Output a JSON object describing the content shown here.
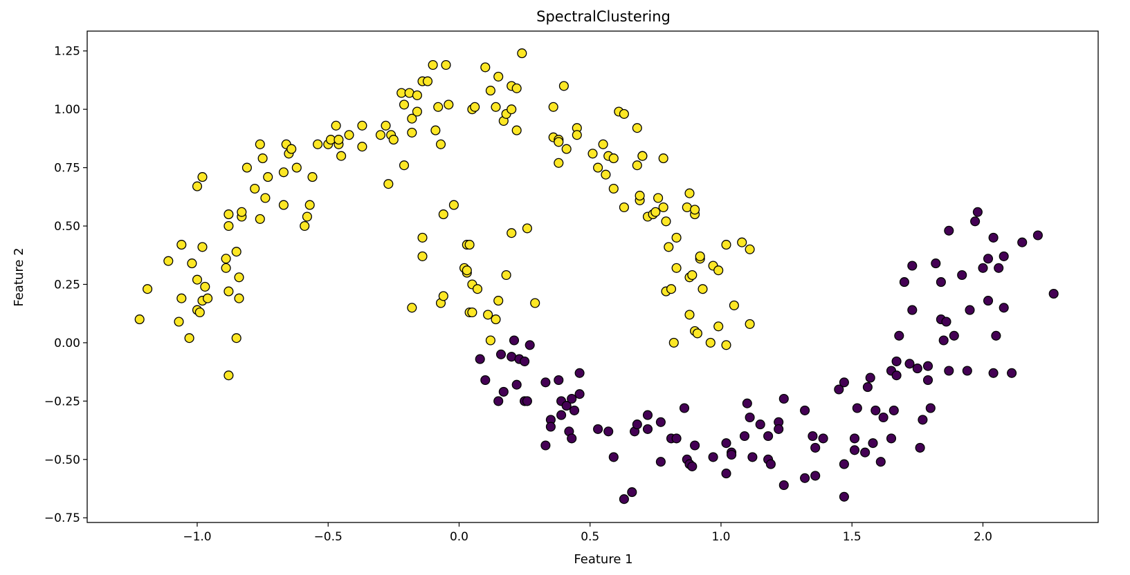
{
  "chart_data": {
    "type": "scatter",
    "title": "SpectralClustering",
    "xlabel": "Feature 1",
    "ylabel": "Feature 2",
    "xlim": [
      -1.42,
      2.44
    ],
    "ylim": [
      -0.77,
      1.335
    ],
    "xticks": [
      -1.0,
      -0.5,
      0.0,
      0.5,
      1.0,
      1.5,
      2.0
    ],
    "xtick_labels": [
      "−1.0",
      "−0.5",
      "0.0",
      "0.5",
      "1.0",
      "1.5",
      "2.0"
    ],
    "yticks": [
      -0.75,
      -0.5,
      -0.25,
      0.0,
      0.25,
      0.5,
      0.75,
      1.0,
      1.25
    ],
    "ytick_labels": [
      "−0.75",
      "−0.50",
      "−0.25",
      "0.00",
      "0.25",
      "0.50",
      "0.75",
      "1.00",
      "1.25"
    ],
    "grid": false,
    "legend": "none",
    "series": [
      {
        "cluster": 0,
        "color": "#440154",
        "points": [
          [
            0.08,
            -0.07
          ],
          [
            0.1,
            -0.16
          ],
          [
            0.16,
            -0.05
          ],
          [
            0.2,
            -0.06
          ],
          [
            0.21,
            0.01
          ],
          [
            0.23,
            -0.07
          ],
          [
            0.25,
            -0.08
          ],
          [
            0.27,
            -0.01
          ],
          [
            0.15,
            -0.25
          ],
          [
            0.17,
            -0.21
          ],
          [
            0.22,
            -0.18
          ],
          [
            0.25,
            -0.25
          ],
          [
            0.26,
            -0.25
          ],
          [
            0.33,
            -0.17
          ],
          [
            0.35,
            -0.33
          ],
          [
            0.35,
            -0.36
          ],
          [
            0.38,
            -0.16
          ],
          [
            0.39,
            -0.25
          ],
          [
            0.39,
            -0.31
          ],
          [
            0.41,
            -0.27
          ],
          [
            0.42,
            -0.38
          ],
          [
            0.43,
            -0.24
          ],
          [
            0.43,
            -0.41
          ],
          [
            0.44,
            -0.29
          ],
          [
            0.46,
            -0.13
          ],
          [
            0.46,
            -0.22
          ],
          [
            0.33,
            -0.44
          ],
          [
            0.53,
            -0.37
          ],
          [
            0.57,
            -0.38
          ],
          [
            0.59,
            -0.49
          ],
          [
            0.63,
            -0.67
          ],
          [
            0.66,
            -0.64
          ],
          [
            0.67,
            -0.38
          ],
          [
            0.68,
            -0.35
          ],
          [
            0.72,
            -0.31
          ],
          [
            0.72,
            -0.37
          ],
          [
            0.77,
            -0.34
          ],
          [
            0.77,
            -0.51
          ],
          [
            0.81,
            -0.41
          ],
          [
            0.83,
            -0.41
          ],
          [
            0.86,
            -0.28
          ],
          [
            0.87,
            -0.5
          ],
          [
            0.88,
            -0.52
          ],
          [
            0.89,
            -0.53
          ],
          [
            0.9,
            -0.44
          ],
          [
            0.97,
            -0.49
          ],
          [
            1.02,
            -0.43
          ],
          [
            1.02,
            -0.56
          ],
          [
            1.04,
            -0.47
          ],
          [
            1.04,
            -0.48
          ],
          [
            1.09,
            -0.4
          ],
          [
            1.1,
            -0.26
          ],
          [
            1.11,
            -0.32
          ],
          [
            1.12,
            -0.49
          ],
          [
            1.15,
            -0.35
          ],
          [
            1.18,
            -0.4
          ],
          [
            1.18,
            -0.5
          ],
          [
            1.19,
            -0.52
          ],
          [
            1.22,
            -0.34
          ],
          [
            1.22,
            -0.37
          ],
          [
            1.24,
            -0.24
          ],
          [
            1.24,
            -0.61
          ],
          [
            1.32,
            -0.29
          ],
          [
            1.32,
            -0.58
          ],
          [
            1.35,
            -0.4
          ],
          [
            1.36,
            -0.45
          ],
          [
            1.36,
            -0.57
          ],
          [
            1.39,
            -0.41
          ],
          [
            1.45,
            -0.2
          ],
          [
            1.47,
            -0.17
          ],
          [
            1.47,
            -0.52
          ],
          [
            1.47,
            -0.66
          ],
          [
            1.51,
            -0.41
          ],
          [
            1.51,
            -0.46
          ],
          [
            1.52,
            -0.28
          ],
          [
            1.55,
            -0.47
          ],
          [
            1.56,
            -0.19
          ],
          [
            1.57,
            -0.15
          ],
          [
            1.58,
            -0.43
          ],
          [
            1.59,
            -0.29
          ],
          [
            1.61,
            -0.51
          ],
          [
            1.62,
            -0.32
          ],
          [
            1.65,
            -0.41
          ],
          [
            1.65,
            -0.12
          ],
          [
            1.66,
            -0.29
          ],
          [
            1.67,
            -0.08
          ],
          [
            1.67,
            -0.14
          ],
          [
            1.68,
            0.03
          ],
          [
            1.7,
            0.26
          ],
          [
            1.72,
            -0.09
          ],
          [
            1.73,
            0.14
          ],
          [
            1.73,
            0.33
          ],
          [
            1.75,
            -0.11
          ],
          [
            1.76,
            -0.45
          ],
          [
            1.77,
            -0.33
          ],
          [
            1.79,
            -0.1
          ],
          [
            1.79,
            -0.16
          ],
          [
            1.8,
            -0.28
          ],
          [
            1.82,
            0.34
          ],
          [
            1.84,
            0.1
          ],
          [
            1.84,
            0.26
          ],
          [
            1.85,
            0.01
          ],
          [
            1.86,
            0.09
          ],
          [
            1.87,
            0.48
          ],
          [
            1.87,
            -0.12
          ],
          [
            1.89,
            0.03
          ],
          [
            1.92,
            0.29
          ],
          [
            1.94,
            -0.12
          ],
          [
            1.95,
            0.14
          ],
          [
            1.97,
            0.52
          ],
          [
            1.98,
            0.56
          ],
          [
            2.0,
            0.32
          ],
          [
            2.02,
            0.36
          ],
          [
            2.02,
            0.18
          ],
          [
            2.04,
            0.45
          ],
          [
            2.04,
            -0.13
          ],
          [
            2.05,
            0.03
          ],
          [
            2.06,
            0.32
          ],
          [
            2.08,
            0.37
          ],
          [
            2.08,
            0.15
          ],
          [
            2.11,
            -0.13
          ],
          [
            2.15,
            0.43
          ],
          [
            2.21,
            0.46
          ],
          [
            2.27,
            0.21
          ]
        ]
      },
      {
        "cluster": 1,
        "color": "#fde725",
        "points": [
          [
            -1.22,
            0.1
          ],
          [
            -1.19,
            0.23
          ],
          [
            -1.11,
            0.35
          ],
          [
            -1.07,
            0.09
          ],
          [
            -1.06,
            0.19
          ],
          [
            -1.06,
            0.42
          ],
          [
            -1.03,
            0.02
          ],
          [
            -1.02,
            0.34
          ],
          [
            -1.0,
            0.27
          ],
          [
            -1.0,
            0.14
          ],
          [
            -0.99,
            0.13
          ],
          [
            -0.98,
            0.18
          ],
          [
            -0.98,
            0.41
          ],
          [
            -0.97,
            0.24
          ],
          [
            -0.96,
            0.19
          ],
          [
            -1.0,
            0.67
          ],
          [
            -0.98,
            0.71
          ],
          [
            -0.89,
            0.32
          ],
          [
            -0.89,
            0.36
          ],
          [
            -0.88,
            0.22
          ],
          [
            -0.88,
            0.5
          ],
          [
            -0.88,
            0.55
          ],
          [
            -0.88,
            -0.14
          ],
          [
            -0.85,
            0.39
          ],
          [
            -0.85,
            0.02
          ],
          [
            -0.84,
            0.28
          ],
          [
            -0.84,
            0.19
          ],
          [
            -0.83,
            0.54
          ],
          [
            -0.83,
            0.56
          ],
          [
            -0.81,
            0.75
          ],
          [
            -0.78,
            0.66
          ],
          [
            -0.76,
            0.53
          ],
          [
            -0.76,
            0.85
          ],
          [
            -0.75,
            0.79
          ],
          [
            -0.74,
            0.62
          ],
          [
            -0.73,
            0.71
          ],
          [
            -0.67,
            0.59
          ],
          [
            -0.67,
            0.73
          ],
          [
            -0.66,
            0.85
          ],
          [
            -0.65,
            0.81
          ],
          [
            -0.64,
            0.83
          ],
          [
            -0.62,
            0.75
          ],
          [
            -0.59,
            0.5
          ],
          [
            -0.58,
            0.54
          ],
          [
            -0.57,
            0.59
          ],
          [
            -0.56,
            0.71
          ],
          [
            -0.54,
            0.85
          ],
          [
            -0.5,
            0.85
          ],
          [
            -0.49,
            0.87
          ],
          [
            -0.47,
            0.93
          ],
          [
            -0.46,
            0.85
          ],
          [
            -0.46,
            0.87
          ],
          [
            -0.45,
            0.8
          ],
          [
            -0.42,
            0.89
          ],
          [
            -0.37,
            0.84
          ],
          [
            -0.37,
            0.93
          ],
          [
            -0.3,
            0.89
          ],
          [
            -0.28,
            0.93
          ],
          [
            -0.27,
            0.68
          ],
          [
            -0.26,
            0.89
          ],
          [
            -0.25,
            0.87
          ],
          [
            -0.22,
            1.07
          ],
          [
            -0.21,
            0.76
          ],
          [
            -0.21,
            1.02
          ],
          [
            -0.19,
            1.07
          ],
          [
            -0.18,
            0.96
          ],
          [
            -0.18,
            0.9
          ],
          [
            -0.16,
            1.06
          ],
          [
            -0.16,
            0.99
          ],
          [
            -0.14,
            1.12
          ],
          [
            -0.12,
            1.12
          ],
          [
            -0.1,
            1.19
          ],
          [
            -0.09,
            0.91
          ],
          [
            -0.08,
            1.01
          ],
          [
            -0.07,
            0.85
          ],
          [
            -0.05,
            1.19
          ],
          [
            -0.04,
            1.02
          ],
          [
            0.05,
            1.0
          ],
          [
            0.06,
            1.01
          ],
          [
            0.1,
            1.18
          ],
          [
            0.12,
            1.08
          ],
          [
            0.14,
            1.01
          ],
          [
            0.15,
            1.14
          ],
          [
            0.17,
            0.95
          ],
          [
            0.18,
            0.98
          ],
          [
            0.2,
            1.0
          ],
          [
            0.2,
            1.1
          ],
          [
            0.22,
            1.09
          ],
          [
            0.22,
            0.91
          ],
          [
            0.24,
            1.24
          ],
          [
            -0.14,
            0.45
          ],
          [
            -0.14,
            0.37
          ],
          [
            -0.18,
            0.15
          ],
          [
            -0.07,
            0.17
          ],
          [
            -0.06,
            0.2
          ],
          [
            -0.06,
            0.55
          ],
          [
            -0.02,
            0.59
          ],
          [
            0.02,
            0.32
          ],
          [
            0.03,
            0.3
          ],
          [
            0.03,
            0.42
          ],
          [
            0.03,
            0.31
          ],
          [
            0.04,
            0.42
          ],
          [
            0.04,
            0.13
          ],
          [
            0.05,
            0.13
          ],
          [
            0.05,
            0.25
          ],
          [
            0.07,
            0.23
          ],
          [
            0.11,
            0.12
          ],
          [
            0.12,
            0.01
          ],
          [
            0.14,
            0.1
          ],
          [
            0.15,
            0.18
          ],
          [
            0.18,
            0.29
          ],
          [
            0.2,
            0.47
          ],
          [
            0.26,
            0.49
          ],
          [
            0.29,
            0.17
          ],
          [
            0.36,
            1.01
          ],
          [
            0.36,
            0.88
          ],
          [
            0.38,
            0.77
          ],
          [
            0.38,
            0.87
          ],
          [
            0.38,
            0.86
          ],
          [
            0.4,
            1.1
          ],
          [
            0.41,
            0.83
          ],
          [
            0.45,
            0.92
          ],
          [
            0.45,
            0.89
          ],
          [
            0.51,
            0.81
          ],
          [
            0.53,
            0.75
          ],
          [
            0.55,
            0.85
          ],
          [
            0.56,
            0.72
          ],
          [
            0.57,
            0.8
          ],
          [
            0.59,
            0.79
          ],
          [
            0.59,
            0.66
          ],
          [
            0.61,
            0.99
          ],
          [
            0.63,
            0.98
          ],
          [
            0.63,
            0.58
          ],
          [
            0.68,
            0.92
          ],
          [
            0.68,
            0.76
          ],
          [
            0.69,
            0.61
          ],
          [
            0.69,
            0.63
          ],
          [
            0.7,
            0.8
          ],
          [
            0.7,
            0.8
          ],
          [
            0.72,
            0.54
          ],
          [
            0.74,
            0.55
          ],
          [
            0.75,
            0.56
          ],
          [
            0.76,
            0.62
          ],
          [
            0.78,
            0.79
          ],
          [
            0.78,
            0.58
          ],
          [
            0.79,
            0.52
          ],
          [
            0.79,
            0.22
          ],
          [
            0.8,
            0.41
          ],
          [
            0.81,
            0.23
          ],
          [
            0.82,
            0.0
          ],
          [
            0.83,
            0.45
          ],
          [
            0.83,
            0.32
          ],
          [
            0.87,
            0.58
          ],
          [
            0.88,
            0.64
          ],
          [
            0.88,
            0.28
          ],
          [
            0.88,
            0.12
          ],
          [
            0.89,
            0.29
          ],
          [
            0.9,
            0.55
          ],
          [
            0.9,
            0.57
          ],
          [
            0.9,
            0.05
          ],
          [
            0.91,
            0.04
          ],
          [
            0.92,
            0.36
          ],
          [
            0.92,
            0.37
          ],
          [
            0.93,
            0.23
          ],
          [
            0.96,
            0.0
          ],
          [
            0.97,
            0.33
          ],
          [
            0.99,
            0.31
          ],
          [
            0.99,
            0.07
          ],
          [
            1.02,
            0.42
          ],
          [
            1.02,
            -0.01
          ],
          [
            1.05,
            0.16
          ],
          [
            1.08,
            0.43
          ],
          [
            1.11,
            0.4
          ],
          [
            1.11,
            0.08
          ]
        ]
      }
    ]
  }
}
